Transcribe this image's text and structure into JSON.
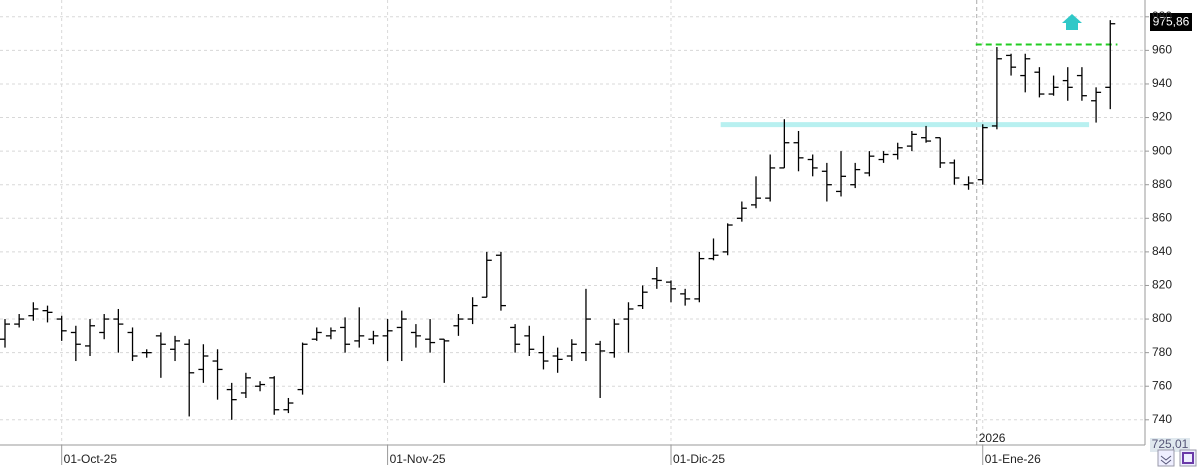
{
  "chart_data": {
    "type": "ohlc",
    "categories": [
      null,
      null,
      null,
      null,
      "01-Oct-25",
      null,
      null,
      null,
      null,
      null,
      null,
      null,
      null,
      null,
      null,
      null,
      null,
      null,
      null,
      null,
      null,
      null,
      null,
      null,
      null,
      null,
      null,
      "01-Nov-25",
      null,
      null,
      null,
      null,
      null,
      null,
      null,
      null,
      null,
      null,
      null,
      null,
      null,
      null,
      null,
      null,
      null,
      null,
      null,
      "01-Dic-25",
      null,
      null,
      null,
      null,
      null,
      null,
      null,
      null,
      null,
      null,
      null,
      null,
      null,
      null,
      null,
      null,
      null,
      null,
      null,
      null,
      null,
      "01-Ene-26",
      null,
      null,
      null,
      null,
      null,
      null,
      null,
      null,
      null
    ],
    "series": [
      {
        "color": "#000000",
        "open": [
          788,
          797,
          802,
          805,
          800,
          792,
          784,
          792,
          800,
          792,
          780,
          790,
          782,
          785,
          770,
          775,
          758,
          756,
          760,
          765,
          746,
          758,
          788,
          790,
          795,
          787,
          788,
          790,
          795,
          792,
          788,
          788,
          796,
          800,
          813,
          838,
          795,
          790,
          780,
          778,
          778,
          780,
          785,
          780,
          800,
          808,
          824,
          822,
          815,
          812,
          836,
          840,
          860,
          868,
          872,
          890,
          905,
          895,
          888,
          876,
          880,
          887,
          895,
          898,
          903,
          908,
          908,
          893,
          880,
          883,
          915,
          957,
          945,
          947,
          934,
          942,
          945,
          930,
          938
        ],
        "high": [
          800,
          803,
          810,
          808,
          802,
          796,
          800,
          803,
          806,
          795,
          782,
          792,
          790,
          788,
          785,
          782,
          762,
          768,
          763,
          766,
          753,
          786,
          795,
          795,
          801,
          807,
          793,
          800,
          805,
          797,
          800,
          788,
          803,
          813,
          840,
          840,
          797,
          796,
          790,
          783,
          788,
          818,
          787,
          800,
          810,
          820,
          831,
          823,
          818,
          840,
          848,
          857,
          870,
          885,
          898,
          919,
          912,
          898,
          893,
          900,
          893,
          900,
          900,
          905,
          912,
          915,
          908,
          895,
          885,
          916,
          962,
          958,
          958,
          950,
          945,
          950,
          950,
          938,
          978
        ],
        "low": [
          783,
          795,
          799,
          798,
          787,
          775,
          778,
          788,
          780,
          775,
          777,
          765,
          775,
          742,
          762,
          752,
          740,
          753,
          757,
          743,
          744,
          755,
          787,
          788,
          780,
          783,
          785,
          775,
          775,
          783,
          780,
          762,
          790,
          797,
          813,
          805,
          780,
          778,
          770,
          768,
          775,
          775,
          753,
          777,
          780,
          806,
          818,
          810,
          808,
          810,
          835,
          838,
          858,
          866,
          870,
          890,
          888,
          885,
          870,
          873,
          878,
          885,
          893,
          895,
          900,
          905,
          890,
          880,
          877,
          880,
          913,
          945,
          935,
          932,
          933,
          930,
          930,
          917,
          925
        ],
        "close": [
          797,
          800,
          806,
          804,
          793,
          785,
          796,
          800,
          797,
          778,
          780,
          785,
          787,
          768,
          778,
          770,
          752,
          765,
          761,
          746,
          750,
          785,
          792,
          793,
          785,
          790,
          790,
          793,
          800,
          790,
          786,
          787,
          800,
          808,
          835,
          808,
          785,
          782,
          775,
          776,
          785,
          800,
          781,
          797,
          806,
          816,
          823,
          818,
          812,
          836,
          838,
          856,
          866,
          872,
          890,
          905,
          896,
          890,
          880,
          885,
          889,
          897,
          898,
          902,
          910,
          906,
          893,
          884,
          881,
          914,
          955,
          950,
          955,
          934,
          938,
          938,
          933,
          935,
          975.86
        ]
      }
    ],
    "ylim": [
      725,
      990
    ],
    "yticks": [
      740,
      760,
      780,
      800,
      820,
      840,
      860,
      880,
      900,
      920,
      940,
      960,
      980
    ],
    "grid": true,
    "year_label": "2026",
    "last_price_label": "975,86",
    "bottom_price_label": "725,01",
    "hlines": [
      {
        "value": 963.5,
        "color": "#22cc22",
        "style": "dashed",
        "from": 69,
        "to": 79
      },
      {
        "value": 915.8,
        "color": "#b8f0f0",
        "style": "band",
        "from": 51,
        "to": 77
      }
    ]
  }
}
